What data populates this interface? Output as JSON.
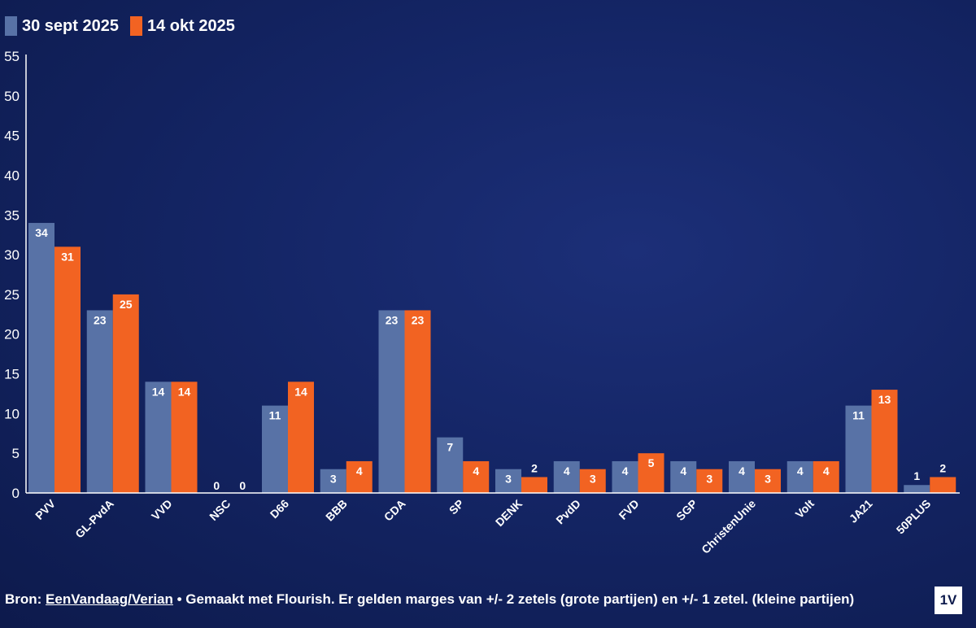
{
  "chart_data": {
    "type": "bar",
    "categories": [
      "PVV",
      "GL-PvdA",
      "VVD",
      "NSC",
      "D66",
      "BBB",
      "CDA",
      "SP",
      "DENK",
      "PvdD",
      "FVD",
      "SGP",
      "ChristenUnie",
      "Volt",
      "JA21",
      "50PLUS"
    ],
    "series": [
      {
        "name": "30 sept 2025",
        "color": "#5872a6",
        "values": [
          34,
          23,
          14,
          0,
          11,
          3,
          23,
          7,
          3,
          4,
          4,
          4,
          4,
          4,
          11,
          1
        ]
      },
      {
        "name": "14 okt 2025",
        "color": "#f26322",
        "values": [
          31,
          25,
          14,
          0,
          14,
          4,
          23,
          4,
          2,
          3,
          5,
          3,
          3,
          4,
          13,
          2
        ]
      }
    ],
    "ylim": [
      0,
      55
    ],
    "yticks": [
      0,
      5,
      10,
      15,
      20,
      25,
      30,
      35,
      40,
      45,
      50,
      55
    ],
    "grid": false,
    "legend_position": "top-left"
  },
  "footer": {
    "prefix": "Bron: ",
    "source_link": "EenVandaag/Verian",
    "suffix": " • Gemaakt met Flourish. Er gelden marges van +/- 2 zetels (grote partijen) en +/- 1 zetel. (kleine partijen)"
  },
  "logo_text": "1V"
}
